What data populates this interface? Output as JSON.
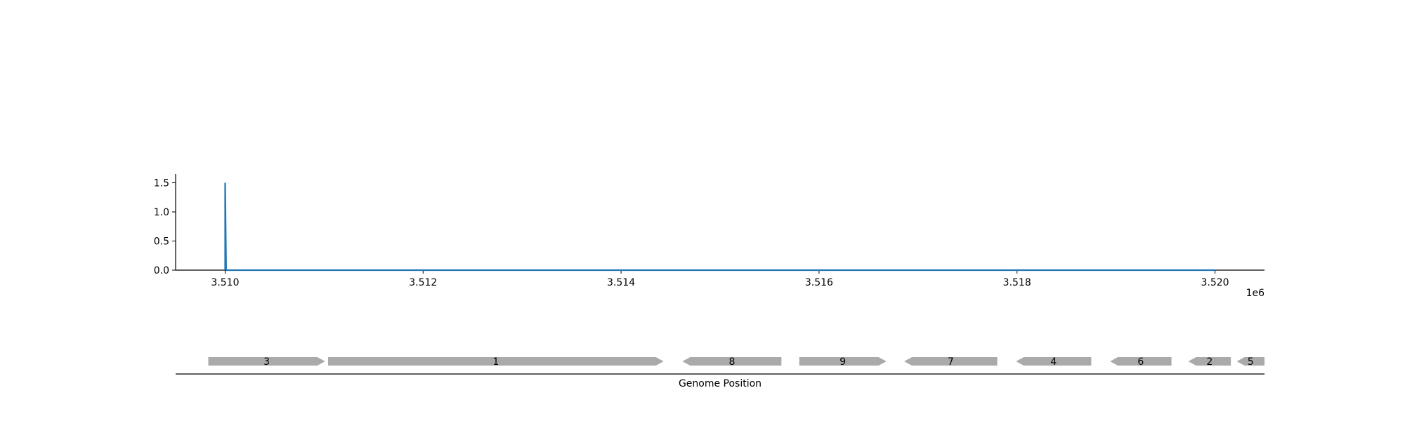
{
  "chart_data": [
    {
      "type": "line",
      "x": [
        3510000,
        3510000,
        3510010,
        3520000
      ],
      "y": [
        0,
        1.5,
        0,
        0
      ],
      "xlim": [
        3509500,
        3520500
      ],
      "ylim": [
        0,
        1.65
      ],
      "xticks": [
        3510000,
        3512000,
        3514000,
        3516000,
        3518000,
        3520000
      ],
      "xtick_labels": [
        "3.510",
        "3.512",
        "3.514",
        "3.516",
        "3.518",
        "3.520"
      ],
      "x_offset_label": "1e6",
      "yticks": [
        0,
        0.5,
        1,
        1.5
      ],
      "ytick_labels": [
        "0.0",
        "0.5",
        "1.0",
        "1.5"
      ],
      "grid": false,
      "color": "#1f77b4"
    },
    {
      "type": "gene_track",
      "xlabel": "Genome Position",
      "color": "#aaaaaa",
      "genes": [
        {
          "label": "3",
          "start": 3509830,
          "end": 3511010,
          "strand": "+"
        },
        {
          "label": "1",
          "start": 3511040,
          "end": 3514430,
          "strand": "+"
        },
        {
          "label": "8",
          "start": 3514620,
          "end": 3515620,
          "strand": "-"
        },
        {
          "label": "9",
          "start": 3515800,
          "end": 3516680,
          "strand": "+"
        },
        {
          "label": "7",
          "start": 3516860,
          "end": 3517800,
          "strand": "-"
        },
        {
          "label": "4",
          "start": 3517990,
          "end": 3518750,
          "strand": "-"
        },
        {
          "label": "6",
          "start": 3518940,
          "end": 3519560,
          "strand": "-"
        },
        {
          "label": "2",
          "start": 3519730,
          "end": 3520160,
          "strand": "-"
        },
        {
          "label": "5",
          "start": 3520220,
          "end": 3520500,
          "strand": "-"
        }
      ]
    }
  ]
}
